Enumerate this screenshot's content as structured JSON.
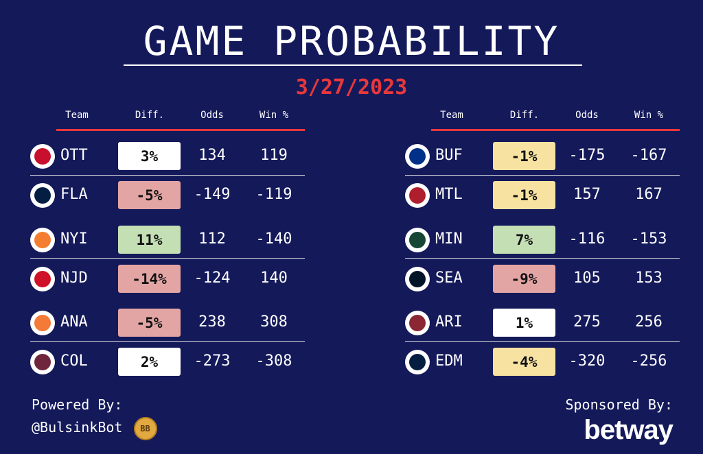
{
  "header": {
    "title": "GAME PROBABILITY",
    "date": "3/27/2023"
  },
  "columns": {
    "team": "Team",
    "diff": "Diff.",
    "odds": "Odds",
    "win": "Win %"
  },
  "colors": {
    "background": "#14195a",
    "accent_red": "#e8383b",
    "diff_positive_green": "#c5dfb5",
    "diff_negative_red": "#e3a5a4",
    "diff_slight_yellow": "#f8e2a2",
    "diff_neutral_white": "#ffffff"
  },
  "games_left": [
    {
      "teams": [
        {
          "abbr": "OTT",
          "diff": "3%",
          "odds": "134",
          "win": "119",
          "diff_color": "#ffffff",
          "logo_icon": "senators-logo-icon",
          "logo_color": "#c8102e"
        },
        {
          "abbr": "FLA",
          "diff": "-5%",
          "odds": "-149",
          "win": "-119",
          "diff_color": "#e3a5a4",
          "logo_icon": "panthers-logo-icon",
          "logo_color": "#041e42"
        }
      ]
    },
    {
      "teams": [
        {
          "abbr": "NYI",
          "diff": "11%",
          "odds": "112",
          "win": "-140",
          "diff_color": "#c5dfb5",
          "logo_icon": "islanders-logo-icon",
          "logo_color": "#f47d30"
        },
        {
          "abbr": "NJD",
          "diff": "-14%",
          "odds": "-124",
          "win": "140",
          "diff_color": "#e3a5a4",
          "logo_icon": "devils-logo-icon",
          "logo_color": "#ce1126"
        }
      ]
    },
    {
      "teams": [
        {
          "abbr": "ANA",
          "diff": "-5%",
          "odds": "238",
          "win": "308",
          "diff_color": "#e3a5a4",
          "logo_icon": "ducks-logo-icon",
          "logo_color": "#f47a38"
        },
        {
          "abbr": "COL",
          "diff": "2%",
          "odds": "-273",
          "win": "-308",
          "diff_color": "#ffffff",
          "logo_icon": "avalanche-logo-icon",
          "logo_color": "#6f263d"
        }
      ]
    }
  ],
  "games_right": [
    {
      "teams": [
        {
          "abbr": "BUF",
          "diff": "-1%",
          "odds": "-175",
          "win": "-167",
          "diff_color": "#f8e2a2",
          "logo_icon": "sabres-logo-icon",
          "logo_color": "#003087"
        },
        {
          "abbr": "MTL",
          "diff": "-1%",
          "odds": "157",
          "win": "167",
          "diff_color": "#f8e2a2",
          "logo_icon": "canadiens-logo-icon",
          "logo_color": "#af1e2d"
        }
      ]
    },
    {
      "teams": [
        {
          "abbr": "MIN",
          "diff": "7%",
          "odds": "-116",
          "win": "-153",
          "diff_color": "#c5dfb5",
          "logo_icon": "wild-logo-icon",
          "logo_color": "#154734"
        },
        {
          "abbr": "SEA",
          "diff": "-9%",
          "odds": "105",
          "win": "153",
          "diff_color": "#e3a5a4",
          "logo_icon": "kraken-logo-icon",
          "logo_color": "#001628"
        }
      ]
    },
    {
      "teams": [
        {
          "abbr": "ARI",
          "diff": "1%",
          "odds": "275",
          "win": "256",
          "diff_color": "#ffffff",
          "logo_icon": "coyotes-logo-icon",
          "logo_color": "#8c2633"
        },
        {
          "abbr": "EDM",
          "diff": "-4%",
          "odds": "-320",
          "win": "-256",
          "diff_color": "#f8e2a2",
          "logo_icon": "oilers-logo-icon",
          "logo_color": "#041e42"
        }
      ]
    }
  ],
  "footer": {
    "powered_label": "Powered By:",
    "powered_handle": "@BulsinkBot",
    "badge_text": "BB",
    "sponsored_label": "Sponsored By:",
    "sponsor_logo_text": "betway"
  }
}
